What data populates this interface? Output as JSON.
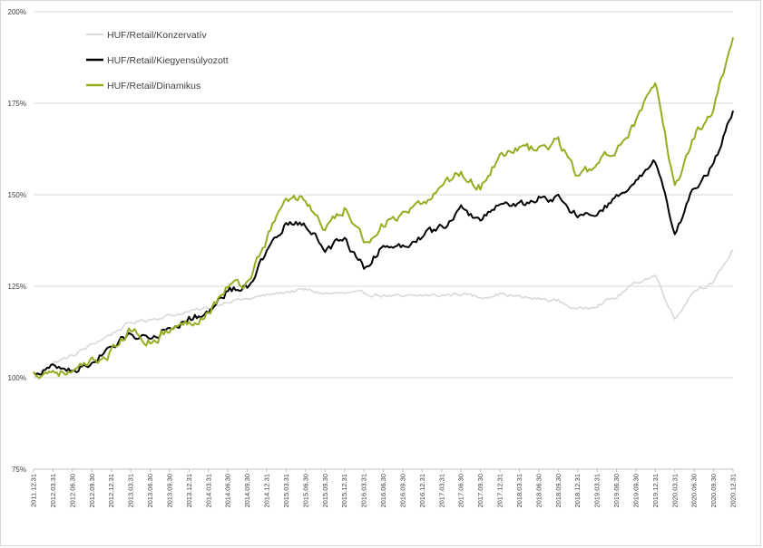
{
  "chart_data": {
    "type": "line",
    "title": "",
    "xlabel": "",
    "ylabel": "",
    "ylim": [
      75,
      200
    ],
    "yticks": [
      {
        "value": 75,
        "label": "75%"
      },
      {
        "value": 100,
        "label": "100%"
      },
      {
        "value": 125,
        "label": "125%"
      },
      {
        "value": 150,
        "label": "150%"
      },
      {
        "value": 175,
        "label": "175%"
      },
      {
        "value": 200,
        "label": "200%"
      }
    ],
    "x_categories": [
      "2011.12.31",
      "2012.03.31",
      "2012.06.30",
      "2012.09.30",
      "2012.12.31",
      "2013.03.31",
      "2013.06.30",
      "2013.09.30",
      "2013.12.31",
      "2014.03.31",
      "2014.06.30",
      "2014.09.30",
      "2014.12.31",
      "2015.03.31",
      "2015.06.30",
      "2015.09.30",
      "2015.12.31",
      "2016.03.31",
      "2016.06.30",
      "2016.09.30",
      "2016.12.31",
      "2017.03.31",
      "2017.06.30",
      "2017.09.30",
      "2017.12.31",
      "2018.03.31",
      "2018.06.30",
      "2018.09.30",
      "2018.12.31",
      "2019.03.31",
      "2019.06.30",
      "2019.09.30",
      "2019.12.31",
      "2020.03.31",
      "2020.06.30",
      "2020.09.30",
      "2020.12.31"
    ],
    "legend_position": "top-left",
    "series": [
      {
        "name": "HUF/Retail/Konzervatív",
        "color": "#d9d9d9",
        "values": [
          100,
          104,
          106,
          109,
          112,
          115,
          116,
          117,
          118,
          119,
          121,
          121.5,
          122.5,
          123.5,
          124,
          123,
          123,
          123,
          122.5,
          122,
          122.5,
          122.5,
          123,
          122,
          123,
          122,
          121.5,
          121,
          118.5,
          120,
          122,
          126,
          128,
          116,
          124,
          126,
          135
        ]
      },
      {
        "name": "HUF/Retail/Kiegyensúlyozott",
        "color": "#000000",
        "values": [
          101,
          103,
          102,
          104,
          108,
          112,
          111,
          114,
          116,
          118,
          124,
          125,
          134,
          142,
          142,
          135,
          138,
          130,
          136,
          136,
          139,
          141,
          146,
          143,
          148,
          147,
          149,
          149,
          144,
          145,
          149,
          153,
          159,
          139,
          152,
          158,
          173
        ]
      },
      {
        "name": "HUF/Retail/Dinamikus",
        "color": "#99ab21",
        "values": [
          101,
          102,
          101,
          104,
          107,
          113,
          110,
          113,
          115,
          118,
          125,
          126,
          138,
          149,
          149,
          140,
          146,
          137,
          142,
          144,
          147,
          153,
          156,
          152,
          161,
          163,
          162,
          165,
          155,
          158,
          163,
          170,
          180,
          152,
          166,
          174,
          193
        ]
      }
    ]
  }
}
